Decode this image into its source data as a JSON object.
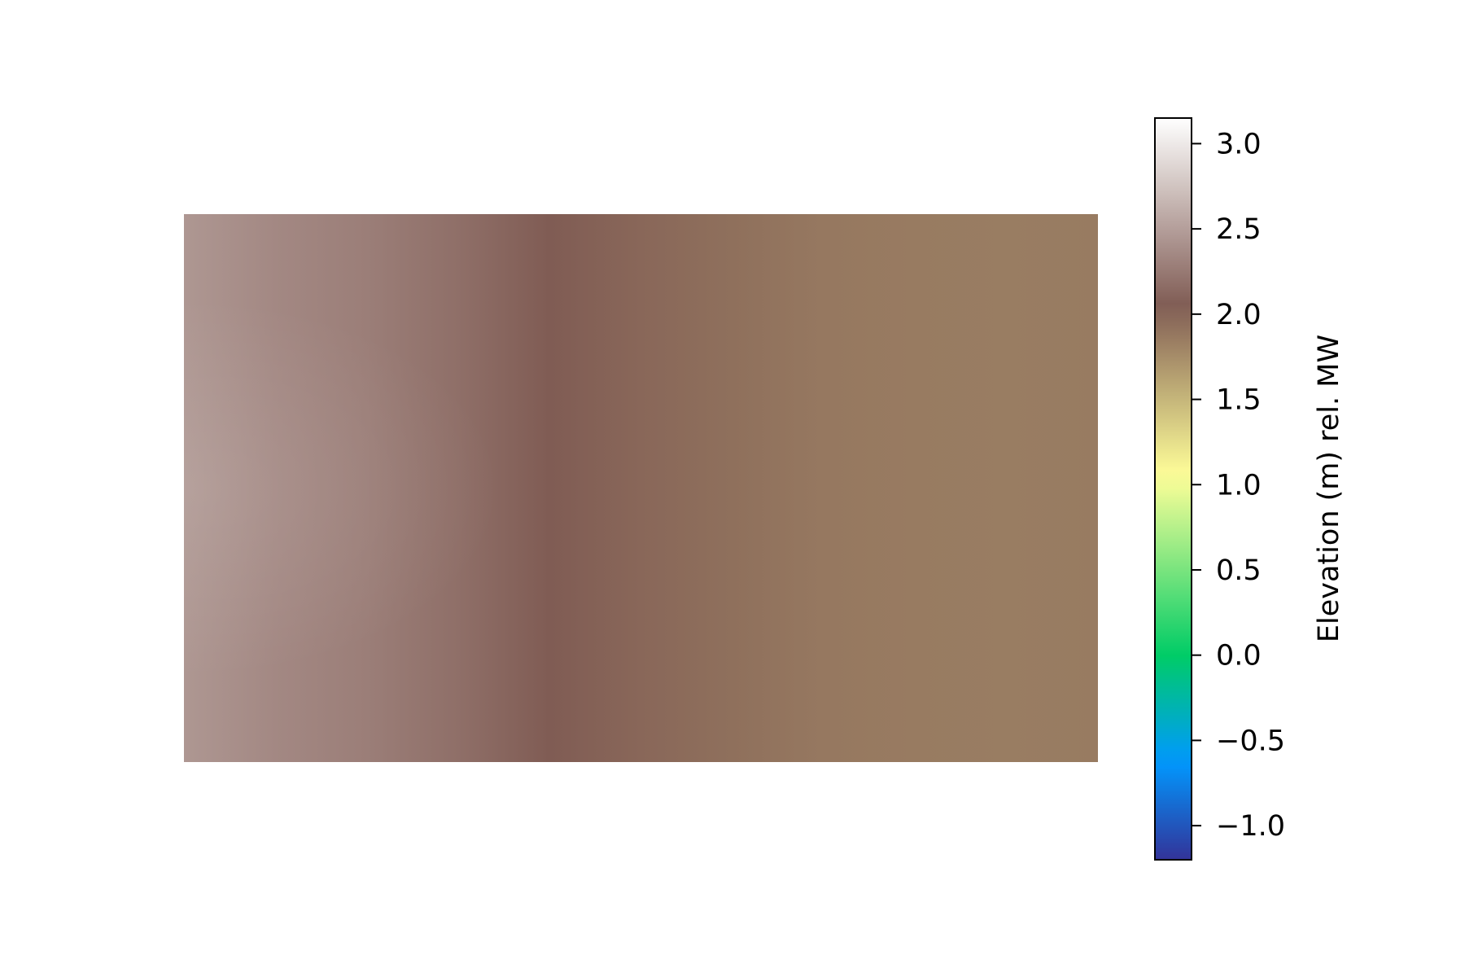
{
  "chart_data": {
    "type": "heatmap",
    "title": "",
    "xlabel": "",
    "ylabel": "",
    "axes_visible": false,
    "grid": false,
    "colormap": "terrain",
    "colorbar": {
      "label": "Elevation (m) rel. MW",
      "placement": "right",
      "range": [
        -1.2,
        3.15
      ],
      "ticks": [
        -1.0,
        -0.5,
        0.0,
        0.5,
        1.0,
        1.5,
        2.0,
        2.5,
        3.0
      ],
      "tick_labels": [
        "−1.0",
        "−0.5",
        "0.0",
        "0.5",
        "1.0",
        "1.5",
        "2.0",
        "2.5",
        "3.0"
      ]
    },
    "field": {
      "description_of_values": "elevation field estimated from colors",
      "x_positions": [
        0.0,
        0.1,
        0.2,
        0.3,
        0.4,
        0.5,
        0.6,
        0.7,
        0.8,
        0.9,
        1.0
      ],
      "x_profile_values": [
        2.45,
        2.35,
        2.28,
        2.18,
        2.05,
        1.98,
        1.93,
        1.88,
        1.86,
        1.85,
        1.86
      ],
      "description": "Elevation varies mainly left-to-right: about 2.45 m at the left edge, a darker band near 2.15 m around 30-40% across, and a smooth decline to about 1.85 m toward the right."
    }
  }
}
